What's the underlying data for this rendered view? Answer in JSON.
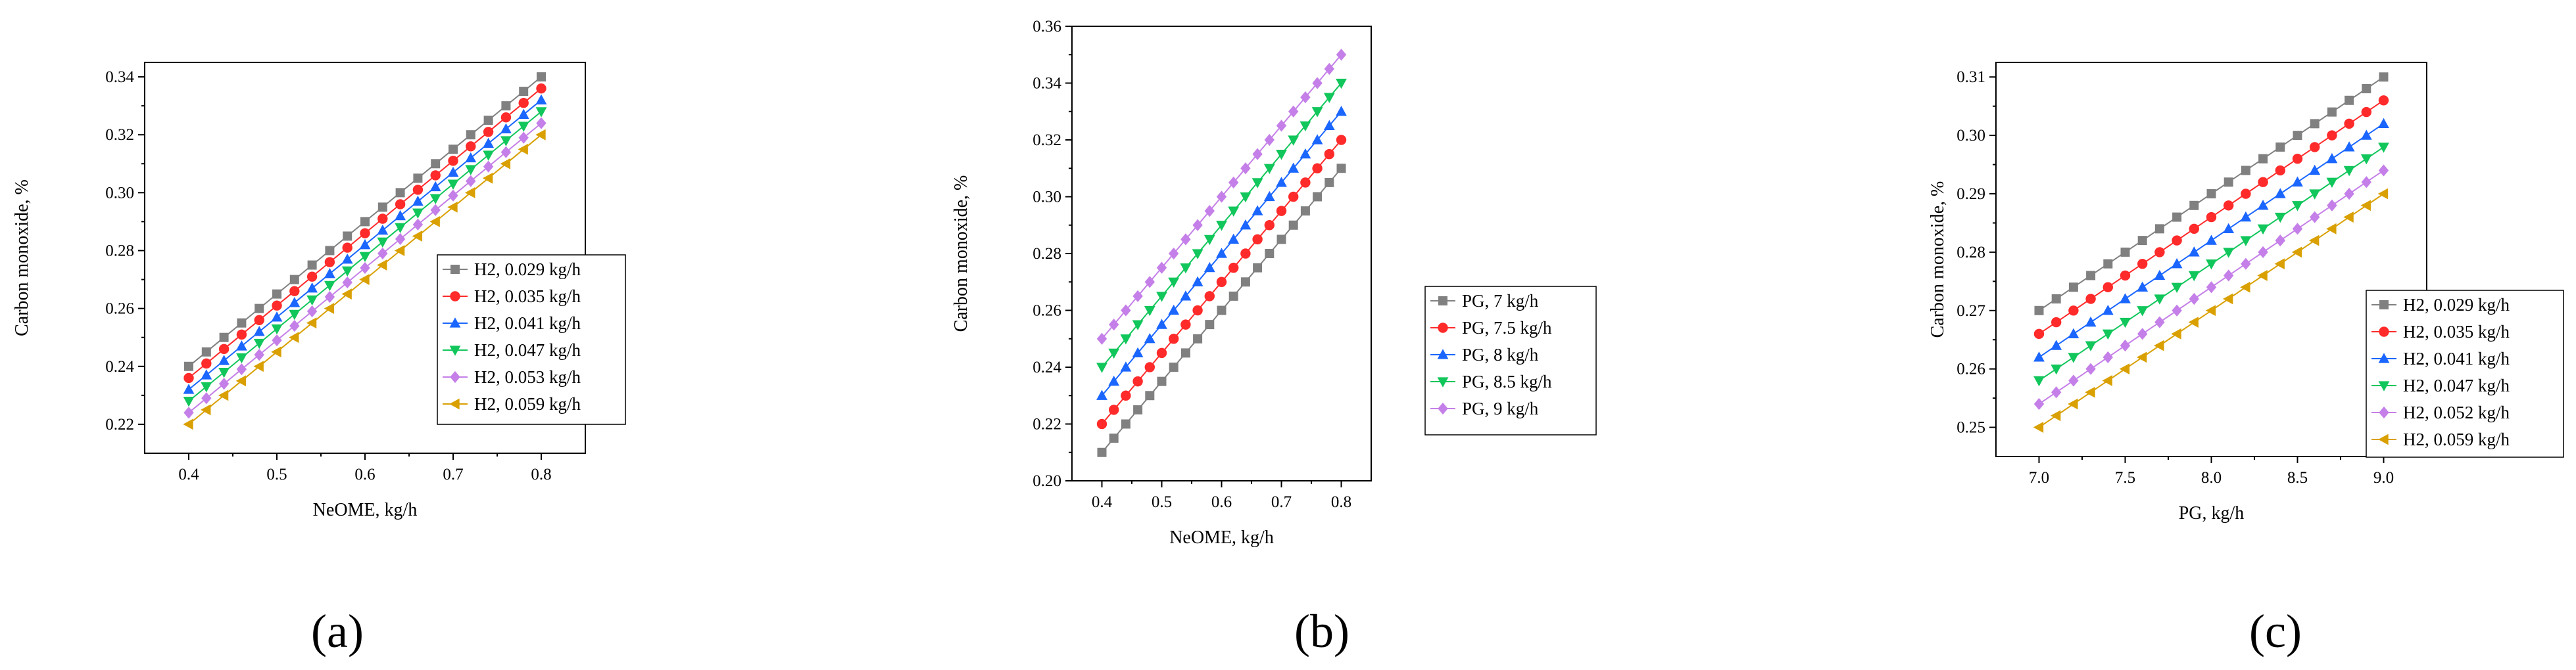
{
  "chart_data": [
    {
      "type": "line",
      "id": "a",
      "caption": "(a)",
      "xlabel": "NeOME, kg/h",
      "ylabel": "Carbon monoxide, %",
      "xlim": [
        0.35,
        0.85
      ],
      "ylim": [
        0.21,
        0.345
      ],
      "xticks": [
        0.4,
        0.5,
        0.6,
        0.7,
        0.8
      ],
      "xtick_labels": [
        "0.4",
        "0.5",
        "0.6",
        "0.7",
        "0.8"
      ],
      "yticks": [
        0.22,
        0.24,
        0.26,
        0.28,
        0.3,
        0.32,
        0.34
      ],
      "ytick_labels": [
        "0.22",
        "0.24",
        "0.26",
        "0.28",
        "0.30",
        "0.32",
        "0.34"
      ],
      "x": [
        0.4,
        0.42,
        0.44,
        0.46,
        0.48,
        0.5,
        0.52,
        0.54,
        0.56,
        0.58,
        0.6,
        0.62,
        0.64,
        0.66,
        0.68,
        0.7,
        0.72,
        0.74,
        0.76,
        0.78,
        0.8
      ],
      "legend": "right",
      "series": [
        {
          "name": "H2, 0.029 kg/h",
          "color": "#808080",
          "marker": "square",
          "start": 0.24,
          "end": 0.34
        },
        {
          "name": "H2, 0.035 kg/h",
          "color": "#ff2a2a",
          "marker": "circle",
          "start": 0.236,
          "end": 0.336
        },
        {
          "name": "H2, 0.041 kg/h",
          "color": "#1a66ff",
          "marker": "triangle-up",
          "start": 0.232,
          "end": 0.332
        },
        {
          "name": "H2, 0.047 kg/h",
          "color": "#11c65b",
          "marker": "triangle-down",
          "start": 0.228,
          "end": 0.328
        },
        {
          "name": "H2, 0.053 kg/h",
          "color": "#c57fe8",
          "marker": "diamond",
          "start": 0.224,
          "end": 0.324
        },
        {
          "name": "H2, 0.059 kg/h",
          "color": "#d9a000",
          "marker": "triangle-left",
          "start": 0.22,
          "end": 0.32
        }
      ]
    },
    {
      "type": "line",
      "id": "b",
      "caption": "(b)",
      "xlabel": "NeOME, kg/h",
      "ylabel": "Carbon monoxide, %",
      "xlim": [
        0.35,
        0.85
      ],
      "ylim": [
        0.2,
        0.36
      ],
      "xticks": [
        0.4,
        0.5,
        0.6,
        0.7,
        0.8
      ],
      "xtick_labels": [
        "0.4",
        "0.5",
        "0.6",
        "0.7",
        "0.8"
      ],
      "yticks": [
        0.2,
        0.22,
        0.24,
        0.26,
        0.28,
        0.3,
        0.32,
        0.34,
        0.36
      ],
      "ytick_labels": [
        "0.20",
        "0.22",
        "0.24",
        "0.26",
        "0.28",
        "0.30",
        "0.32",
        "0.34",
        "0.36"
      ],
      "x": [
        0.4,
        0.42,
        0.44,
        0.46,
        0.48,
        0.5,
        0.52,
        0.54,
        0.56,
        0.58,
        0.6,
        0.62,
        0.64,
        0.66,
        0.68,
        0.7,
        0.72,
        0.74,
        0.76,
        0.78,
        0.8
      ],
      "legend": "right",
      "series": [
        {
          "name": "PG, 7 kg/h",
          "color": "#808080",
          "marker": "square",
          "start": 0.21,
          "end": 0.31
        },
        {
          "name": "PG, 7.5 kg/h",
          "color": "#ff2a2a",
          "marker": "circle",
          "start": 0.22,
          "end": 0.32
        },
        {
          "name": "PG, 8 kg/h",
          "color": "#1a66ff",
          "marker": "triangle-up",
          "start": 0.23,
          "end": 0.33
        },
        {
          "name": "PG, 8.5 kg/h",
          "color": "#11c65b",
          "marker": "triangle-down",
          "start": 0.24,
          "end": 0.34
        },
        {
          "name": "PG, 9 kg/h",
          "color": "#c57fe8",
          "marker": "diamond",
          "start": 0.25,
          "end": 0.35
        }
      ]
    },
    {
      "type": "line",
      "id": "c",
      "caption": "(c)",
      "xlabel": "PG, kg/h",
      "ylabel": "Carbon monoxide, %",
      "xlim": [
        6.75,
        9.25
      ],
      "ylim": [
        0.245,
        0.3125
      ],
      "xticks": [
        7.0,
        7.5,
        8.0,
        8.5,
        9.0
      ],
      "xtick_labels": [
        "7.0",
        "7.5",
        "8.0",
        "8.5",
        "9.0"
      ],
      "yticks": [
        0.25,
        0.26,
        0.27,
        0.28,
        0.29,
        0.3,
        0.31
      ],
      "ytick_labels": [
        "0.25",
        "0.26",
        "0.27",
        "0.28",
        "0.29",
        "0.30",
        "0.31"
      ],
      "x": [
        7.0,
        7.1,
        7.2,
        7.3,
        7.4,
        7.5,
        7.6,
        7.7,
        7.8,
        7.9,
        8.0,
        8.1,
        8.2,
        8.3,
        8.4,
        8.5,
        8.6,
        8.7,
        8.8,
        8.9,
        9.0
      ],
      "legend": "right",
      "series": [
        {
          "name": "H2, 0.029 kg/h",
          "color": "#808080",
          "marker": "square",
          "start": 0.27,
          "end": 0.31
        },
        {
          "name": "H2, 0.035 kg/h",
          "color": "#ff2a2a",
          "marker": "circle",
          "start": 0.266,
          "end": 0.306
        },
        {
          "name": "H2, 0.041 kg/h",
          "color": "#1a66ff",
          "marker": "triangle-up",
          "start": 0.262,
          "end": 0.302
        },
        {
          "name": "H2, 0.047 kg/h",
          "color": "#11c65b",
          "marker": "triangle-down",
          "start": 0.258,
          "end": 0.298
        },
        {
          "name": "H2, 0.052 kg/h",
          "color": "#c57fe8",
          "marker": "diamond",
          "start": 0.254,
          "end": 0.294
        },
        {
          "name": "H2, 0.059 kg/h",
          "color": "#d9a000",
          "marker": "triangle-left",
          "start": 0.25,
          "end": 0.29
        }
      ]
    }
  ]
}
